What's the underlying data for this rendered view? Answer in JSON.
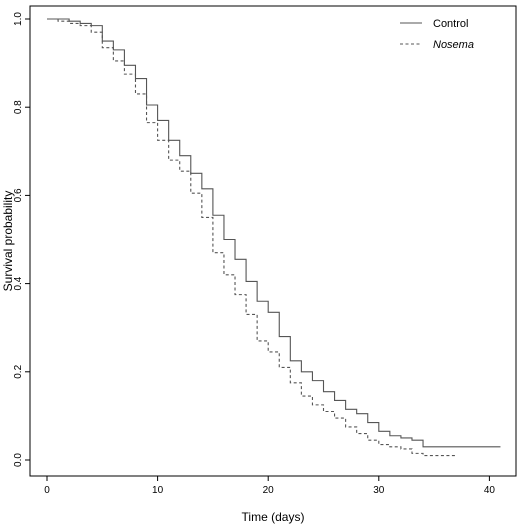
{
  "chart_data": {
    "type": "line",
    "step": true,
    "title": "",
    "xlabel": "Time (days)",
    "ylabel": "Survival probability",
    "xlim": [
      0,
      42
    ],
    "ylim": [
      0,
      1.0
    ],
    "x_ticks": [
      0,
      10,
      20,
      30,
      40
    ],
    "y_ticks": [
      0.0,
      0.2,
      0.4,
      0.6,
      0.8,
      1.0
    ],
    "x_tick_labels": [
      "0",
      "10",
      "20",
      "30",
      "40"
    ],
    "y_tick_labels": [
      "0.0",
      "0.2",
      "0.4",
      "0.6",
      "0.8",
      "1.0"
    ],
    "grid": false,
    "legend": {
      "position": "top-right"
    },
    "series": [
      {
        "name": "Control",
        "style": "solid",
        "italic": false,
        "color": "#555555",
        "points": [
          [
            0,
            1.0
          ],
          [
            2,
            0.995
          ],
          [
            3,
            0.99
          ],
          [
            4,
            0.985
          ],
          [
            5,
            0.95
          ],
          [
            6,
            0.93
          ],
          [
            7,
            0.895
          ],
          [
            8,
            0.865
          ],
          [
            9,
            0.805
          ],
          [
            10,
            0.77
          ],
          [
            11,
            0.725
          ],
          [
            12,
            0.69
          ],
          [
            13,
            0.65
          ],
          [
            14,
            0.615
          ],
          [
            15,
            0.555
          ],
          [
            16,
            0.5
          ],
          [
            17,
            0.455
          ],
          [
            18,
            0.405
          ],
          [
            19,
            0.36
          ],
          [
            20,
            0.335
          ],
          [
            21,
            0.28
          ],
          [
            22,
            0.225
          ],
          [
            23,
            0.2
          ],
          [
            24,
            0.18
          ],
          [
            25,
            0.155
          ],
          [
            26,
            0.135
          ],
          [
            27,
            0.115
          ],
          [
            28,
            0.105
          ],
          [
            29,
            0.085
          ],
          [
            30,
            0.065
          ],
          [
            31,
            0.055
          ],
          [
            32,
            0.05
          ],
          [
            33,
            0.045
          ],
          [
            34,
            0.03
          ],
          [
            35,
            0.03
          ],
          [
            41,
            0.03
          ]
        ]
      },
      {
        "name": "Nosema",
        "style": "dashed",
        "italic": true,
        "color": "#555555",
        "points": [
          [
            0,
            1.0
          ],
          [
            1,
            0.995
          ],
          [
            2,
            0.99
          ],
          [
            3,
            0.985
          ],
          [
            4,
            0.97
          ],
          [
            5,
            0.935
          ],
          [
            6,
            0.905
          ],
          [
            7,
            0.875
          ],
          [
            8,
            0.83
          ],
          [
            9,
            0.765
          ],
          [
            10,
            0.725
          ],
          [
            11,
            0.68
          ],
          [
            12,
            0.655
          ],
          [
            13,
            0.605
          ],
          [
            14,
            0.55
          ],
          [
            15,
            0.47
          ],
          [
            16,
            0.42
          ],
          [
            17,
            0.375
          ],
          [
            18,
            0.33
          ],
          [
            19,
            0.27
          ],
          [
            20,
            0.245
          ],
          [
            21,
            0.21
          ],
          [
            22,
            0.175
          ],
          [
            23,
            0.145
          ],
          [
            24,
            0.125
          ],
          [
            25,
            0.11
          ],
          [
            26,
            0.095
          ],
          [
            27,
            0.075
          ],
          [
            28,
            0.06
          ],
          [
            29,
            0.045
          ],
          [
            30,
            0.035
          ],
          [
            31,
            0.03
          ],
          [
            32,
            0.025
          ],
          [
            33,
            0.015
          ],
          [
            34,
            0.01
          ],
          [
            37,
            0.01
          ]
        ]
      }
    ]
  }
}
